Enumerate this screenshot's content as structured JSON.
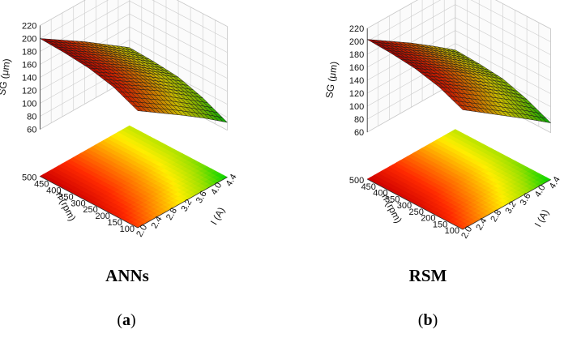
{
  "panels": [
    {
      "label": "ANNs",
      "caption_open": "(",
      "caption_letter": "a",
      "caption_close": ")"
    },
    {
      "label": "RSM",
      "caption_open": "(",
      "caption_letter": "b",
      "caption_close": ")"
    }
  ],
  "chart_data": [
    {
      "type": "surface3d",
      "title": "ANNs",
      "xlabel": "I (A)",
      "ylabel": "n (rpm)",
      "zlabel": "SG (μm)",
      "x_ticks": [
        "2.0",
        "2.4",
        "2.8",
        "3.2",
        "3.6",
        "4.0",
        "4.4"
      ],
      "y_ticks": [
        "100",
        "150",
        "200",
        "250",
        "300",
        "350",
        "400",
        "450",
        "500"
      ],
      "z_ticks": [
        "60",
        "80",
        "100",
        "120",
        "140",
        "160",
        "180",
        "200",
        "220"
      ],
      "xlim": [
        2.0,
        4.4
      ],
      "ylim": [
        100,
        500
      ],
      "zlim": [
        60,
        220
      ],
      "projected_contour": true,
      "colormap": [
        "#cc0000",
        "#ff2a00",
        "#ff8c00",
        "#ffee00",
        "#9be000",
        "#00d400"
      ],
      "surface_grid": {
        "x": [
          2.0,
          2.6,
          3.2,
          3.8,
          4.4
        ],
        "y": [
          100,
          200,
          300,
          400,
          500
        ],
        "z": [
          [
            168,
            185,
            194,
            198,
            200
          ],
          [
            145,
            162,
            172,
            176,
            178
          ],
          [
            122,
            140,
            150,
            154,
            156
          ],
          [
            98,
            115,
            126,
            130,
            132
          ],
          [
            72,
            90,
            102,
            106,
            108
          ]
        ]
      }
    },
    {
      "type": "surface3d",
      "title": "RSM",
      "xlabel": "I (A)",
      "ylabel": "n (rpm)",
      "zlabel": "SG (μm)",
      "x_ticks": [
        "2.0",
        "2.4",
        "2.8",
        "3.2",
        "3.6",
        "4.0",
        "4.4"
      ],
      "y_ticks": [
        "100",
        "150",
        "200",
        "250",
        "300",
        "350",
        "400",
        "450",
        "500"
      ],
      "z_ticks": [
        "60",
        "80",
        "100",
        "120",
        "140",
        "160",
        "180",
        "200",
        "220"
      ],
      "xlim": [
        2.0,
        4.4
      ],
      "ylim": [
        100,
        500
      ],
      "zlim": [
        60,
        220
      ],
      "projected_contour": true,
      "colormap": [
        "#cc0000",
        "#ff2a00",
        "#ff8c00",
        "#ffee00",
        "#9be000",
        "#00d400"
      ],
      "surface_grid": {
        "x": [
          2.0,
          2.6,
          3.2,
          3.8,
          4.4
        ],
        "y": [
          100,
          200,
          300,
          400,
          500
        ],
        "z": [
          [
            172,
            188,
            197,
            201,
            203
          ],
          [
            148,
            165,
            175,
            179,
            181
          ],
          [
            124,
            142,
            153,
            157,
            159
          ],
          [
            100,
            118,
            129,
            133,
            135
          ],
          [
            75,
            92,
            104,
            108,
            110
          ]
        ]
      }
    }
  ]
}
